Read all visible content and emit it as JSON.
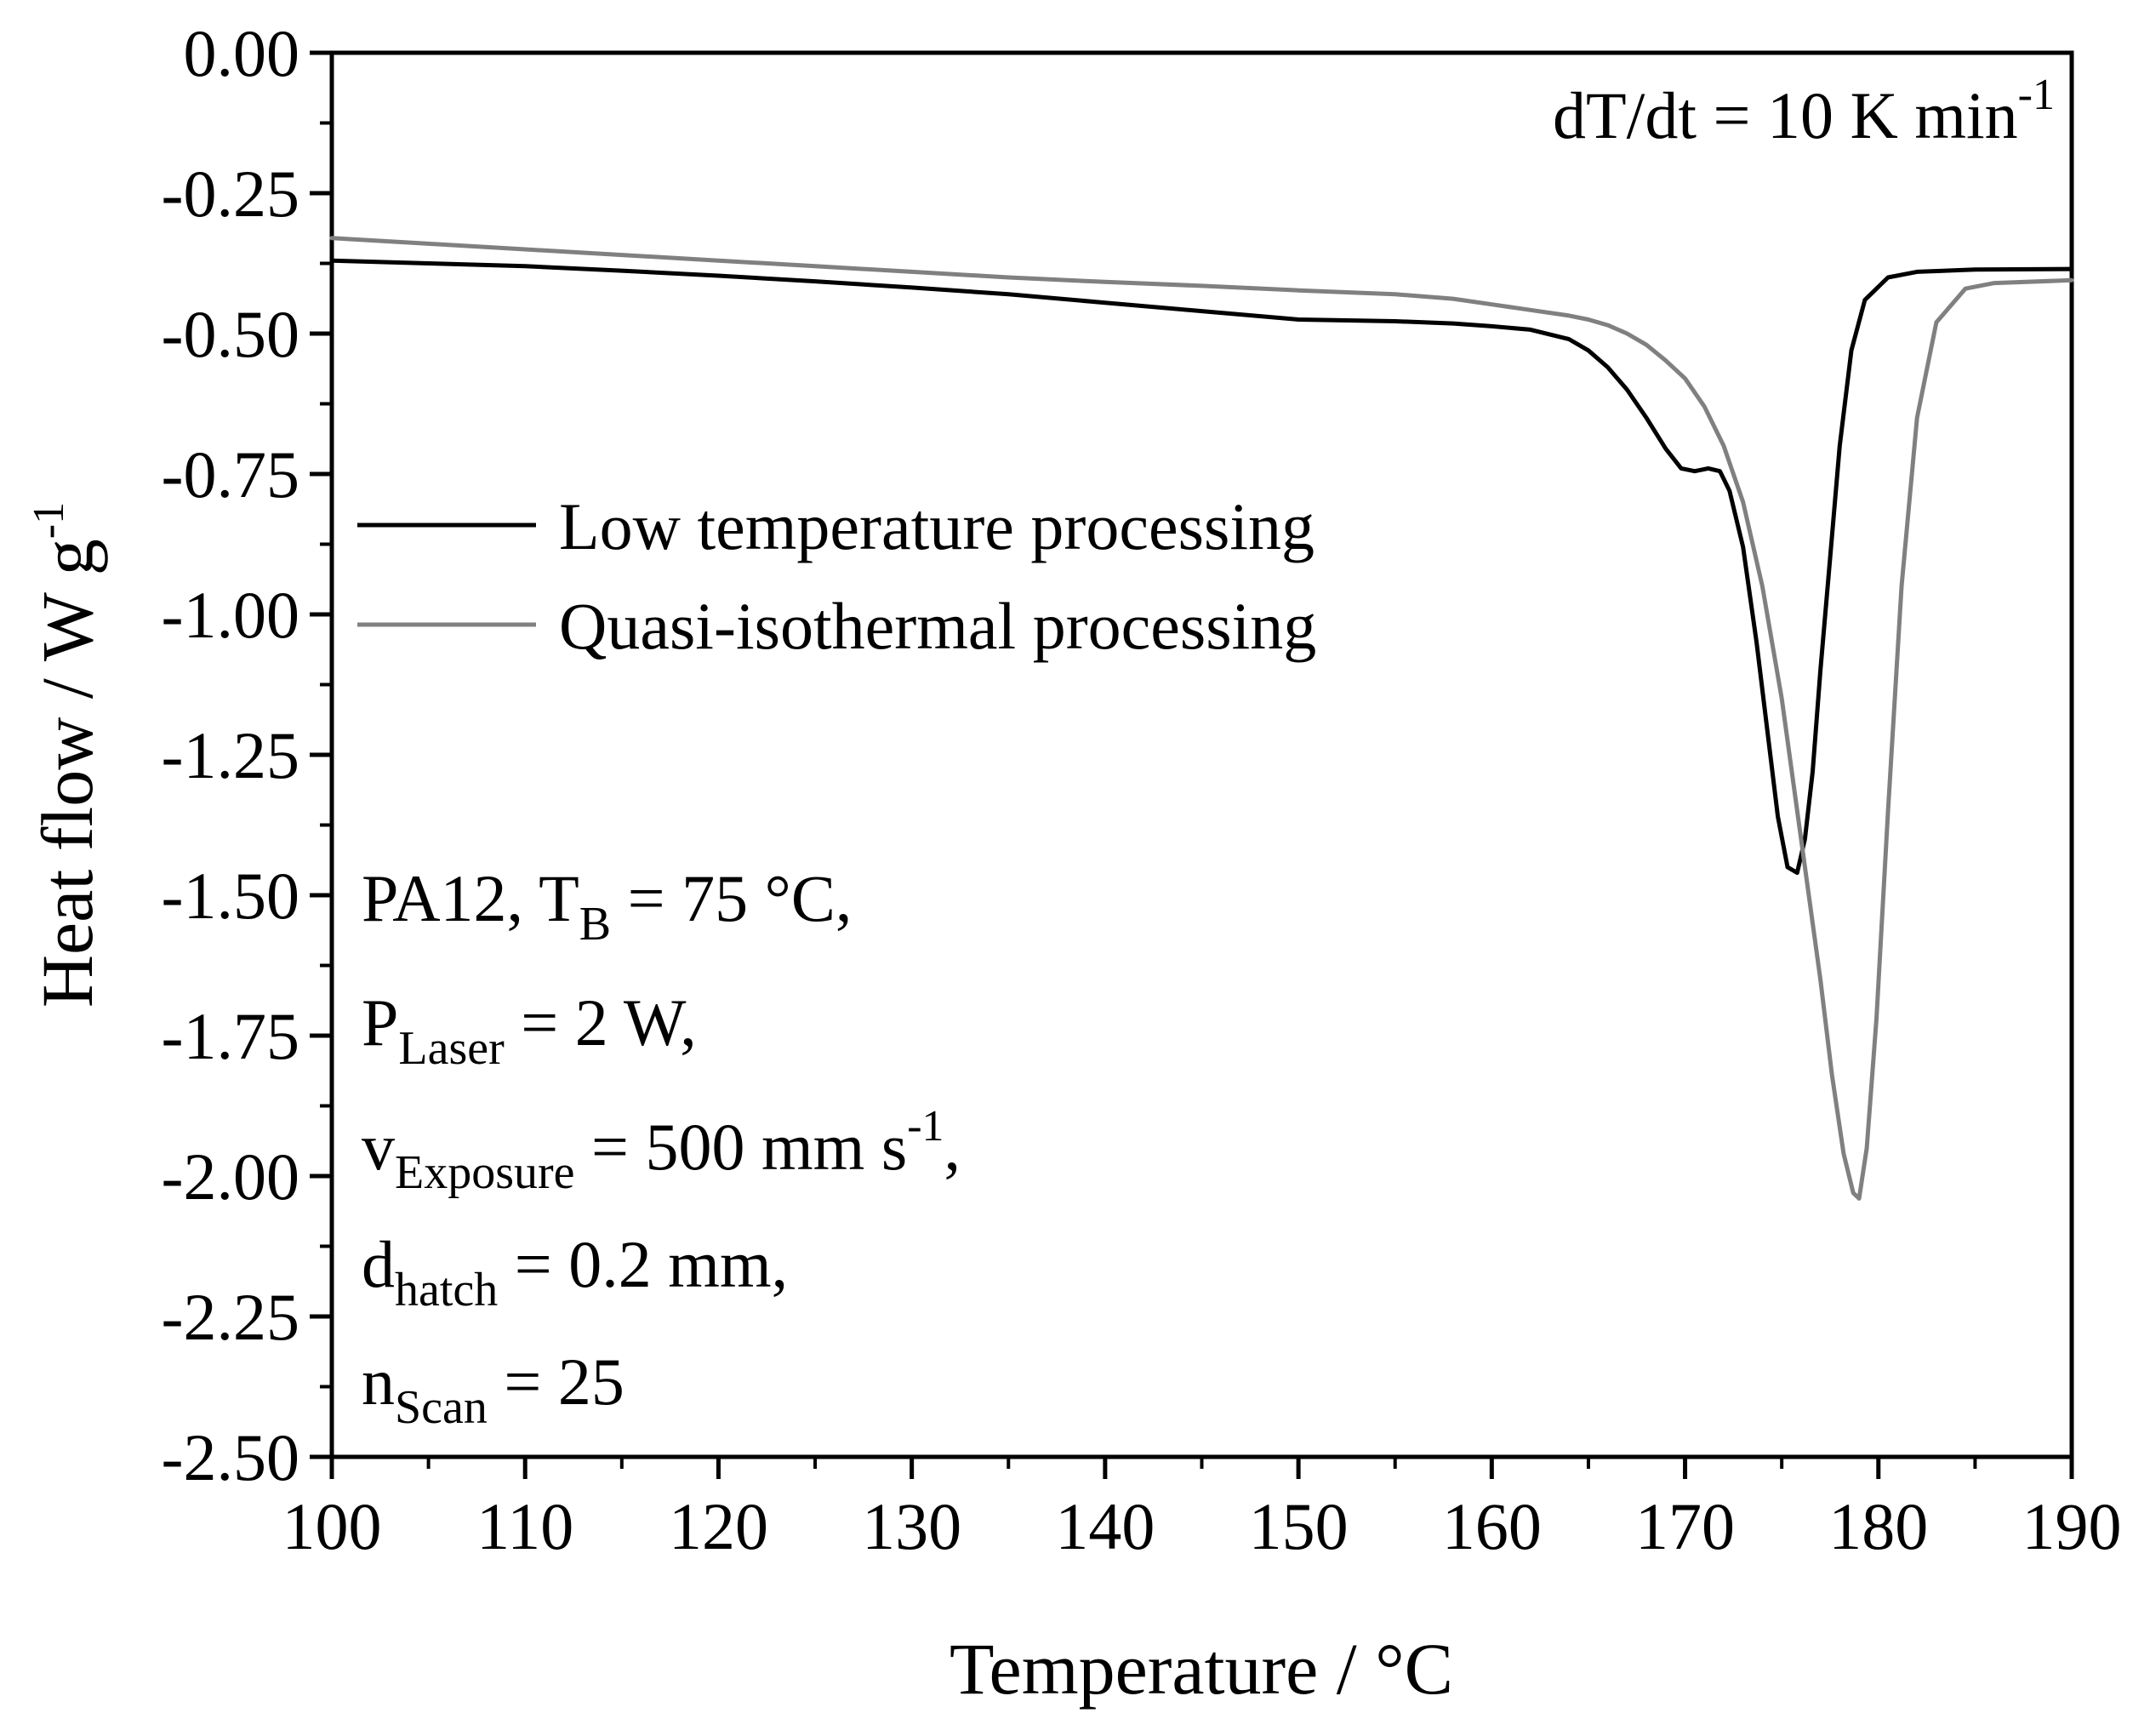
{
  "chart_data": {
    "type": "line",
    "title": "",
    "xlabel": "Temperature / °C",
    "ylabel": {
      "text": "Heat flow / W g",
      "superscript": "-1"
    },
    "xlim": [
      100,
      190
    ],
    "ylim": [
      -2.5,
      0.0
    ],
    "x_ticks": [
      "100",
      "110",
      "120",
      "130",
      "140",
      "150",
      "160",
      "170",
      "180",
      "190"
    ],
    "y_ticks": [
      "0.00",
      "-0.25",
      "-0.50",
      "-0.75",
      "-1.00",
      "-1.25",
      "-1.50",
      "-1.75",
      "-2.00",
      "-2.25",
      "-2.50"
    ],
    "x_tick_values": [
      100,
      110,
      120,
      130,
      140,
      150,
      160,
      170,
      180,
      190
    ],
    "y_tick_values": [
      0.0,
      -0.25,
      -0.5,
      -0.75,
      -1.0,
      -1.25,
      -1.5,
      -1.75,
      -2.0,
      -2.25,
      -2.5
    ],
    "grid": false,
    "legend_position": "upper-left",
    "series": [
      {
        "name": "Low temperature processing",
        "color": "#000000",
        "x": [
          100,
          105,
          110,
          115,
          120,
          125,
          130,
          135,
          140,
          145,
          150,
          155,
          158,
          160,
          162,
          164,
          165,
          166,
          167,
          168,
          169,
          169.8,
          170.5,
          171.2,
          171.8,
          172.3,
          173,
          173.7,
          174.3,
          174.8,
          175.3,
          175.8,
          176.2,
          176.6,
          177,
          177.5,
          178,
          178.6,
          179.3,
          180.5,
          182,
          185,
          190
        ],
        "y": [
          -0.37,
          -0.375,
          -0.38,
          -0.388,
          -0.397,
          -0.407,
          -0.418,
          -0.43,
          -0.445,
          -0.46,
          -0.475,
          -0.478,
          -0.482,
          -0.487,
          -0.493,
          -0.51,
          -0.53,
          -0.56,
          -0.6,
          -0.65,
          -0.705,
          -0.74,
          -0.745,
          -0.74,
          -0.745,
          -0.78,
          -0.88,
          -1.05,
          -1.22,
          -1.36,
          -1.45,
          -1.46,
          -1.4,
          -1.28,
          -1.1,
          -0.9,
          -0.7,
          -0.53,
          -0.44,
          -0.4,
          -0.39,
          -0.386,
          -0.385
        ]
      },
      {
        "name": "Quasi-isothermal processing",
        "color": "#808080",
        "x": [
          100,
          105,
          110,
          115,
          120,
          125,
          130,
          135,
          140,
          145,
          150,
          155,
          158,
          160,
          162,
          164,
          165,
          166,
          167,
          168,
          169,
          170,
          171,
          172,
          173,
          174,
          175,
          176,
          177,
          177.6,
          178.2,
          178.7,
          179.0,
          179.4,
          179.9,
          180.5,
          181.2,
          182,
          183,
          184.5,
          186,
          190
        ],
        "y": [
          -0.33,
          -0.34,
          -0.35,
          -0.36,
          -0.37,
          -0.38,
          -0.39,
          -0.4,
          -0.408,
          -0.415,
          -0.423,
          -0.43,
          -0.438,
          -0.448,
          -0.458,
          -0.468,
          -0.475,
          -0.485,
          -0.5,
          -0.52,
          -0.548,
          -0.58,
          -0.63,
          -0.7,
          -0.8,
          -0.95,
          -1.15,
          -1.4,
          -1.65,
          -1.82,
          -1.96,
          -2.03,
          -2.04,
          -1.95,
          -1.72,
          -1.35,
          -0.95,
          -0.65,
          -0.48,
          -0.42,
          -0.41,
          -0.405
        ]
      }
    ],
    "annotations": {
      "rate": {
        "main": "dT/dt = 10 K min",
        "sup": "-1"
      },
      "params": [
        {
          "pre": "PA12, T",
          "sub": "B",
          "post": " = 75 °C,",
          "sup": "",
          "tail": ""
        },
        {
          "pre": "P",
          "sub": "Laser",
          "post": " = 2 W,",
          "sup": "",
          "tail": ""
        },
        {
          "pre": "v",
          "sub": "Exposure",
          "post": " = 500 mm s",
          "sup": "-1",
          "tail": ","
        },
        {
          "pre": "d",
          "sub": "hatch",
          "post": " = 0.2 mm,",
          "sup": "",
          "tail": ""
        },
        {
          "pre": "n",
          "sub": "Scan",
          "post": " = 25",
          "sup": "",
          "tail": ""
        }
      ]
    }
  }
}
